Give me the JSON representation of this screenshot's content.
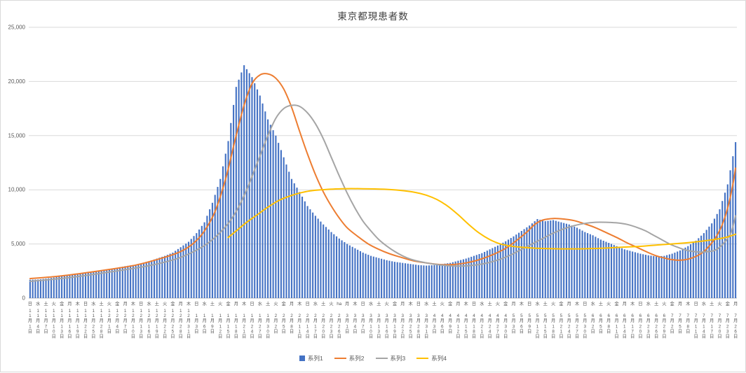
{
  "chart_data": {
    "type": "combo(bar+line)",
    "title": "東京都現患者数",
    "x_axis": "日付(毎日の棒、目盛ラベルは3日毎、11月1日〜7月26日)",
    "ylabel": "",
    "ylim": [
      0,
      25000
    ],
    "grid": "horizontal every 5000",
    "legend_position": "bottom",
    "n_days": 268,
    "y_ticks": [
      [
        0,
        "0"
      ],
      [
        5000,
        "5,000"
      ],
      [
        10000,
        "10,000"
      ],
      [
        15000,
        "15,000"
      ],
      [
        20000,
        "20,000"
      ],
      [
        25000,
        "25,000"
      ]
    ],
    "x_labels": {
      "weekday": [
        "日",
        "水",
        "土",
        "火",
        "金",
        "月",
        "木",
        "日",
        "水",
        "土",
        "火",
        "金",
        "月",
        "木",
        "日",
        "水",
        "土",
        "火",
        "金",
        "月",
        "木",
        "日",
        "水",
        "土",
        "火",
        "金",
        "月",
        "木",
        "日",
        "水",
        "土",
        "火",
        "金",
        "月",
        "木",
        "日",
        "水",
        "土",
        "火",
        "ha",
        "月",
        "木",
        "日",
        "水",
        "土",
        "火",
        "金",
        "月",
        "木",
        "日",
        "水",
        "土",
        "火",
        "金",
        "月",
        "木",
        "日",
        "水",
        "土",
        "火",
        "金",
        "月",
        "木",
        "日",
        "水",
        "土",
        "火",
        "金",
        "月",
        "木",
        "日",
        "水",
        "土",
        "火",
        "金",
        "月",
        "木",
        "日",
        "水",
        "土",
        "火",
        "金",
        "月",
        "木",
        "日",
        "水",
        "土",
        "火",
        "金",
        "月"
      ],
      "month": [
        "11月",
        "11月",
        "11月",
        "11月",
        "11月",
        "11月",
        "11月",
        "11月",
        "11月",
        "11月",
        "12月",
        "12月",
        "12月",
        "12月",
        "12月",
        "12月",
        "12月",
        "12月",
        "12月",
        "12月",
        "12月",
        "1月",
        "1月",
        "1月",
        "1月",
        "1月",
        "1月",
        "1月",
        "1月",
        "1月",
        "1月",
        "2月",
        "2月",
        "2月",
        "2月",
        "2月",
        "2月",
        "2月",
        "2月",
        "2月",
        "3月",
        "3月",
        "3月",
        "3月",
        "3月",
        "3月",
        "3月",
        "3月",
        "3月",
        "3月",
        "3月",
        "4月",
        "4月",
        "4月",
        "4月",
        "4月",
        "4月",
        "4月",
        "4月",
        "4月",
        "4月",
        "5月",
        "5月",
        "5月",
        "5月",
        "5月",
        "5月",
        "5月",
        "5月",
        "5月",
        "5月",
        "6月",
        "6月",
        "6月",
        "6月",
        "6月",
        "6月",
        "6月",
        "6月",
        "6月",
        "6月",
        "7月",
        "7月",
        "7月",
        "7月",
        "7月",
        "7月",
        "7月",
        "7月",
        "7月"
      ],
      "day": [
        "1日",
        "4日",
        "7日",
        "10日",
        "13日",
        "16日",
        "19日",
        "22日",
        "25日",
        "28日",
        "1日",
        "4日",
        "7日",
        "10日",
        "13日",
        "16日",
        "19日",
        "22日",
        "25日",
        "28日",
        "31日",
        "3日",
        "6日",
        "9日",
        "12日",
        "15日",
        "18日",
        "21日",
        "24日",
        "27日",
        "30日",
        "2日",
        "5日",
        "8日",
        "11日",
        "14日",
        "17日",
        "20日",
        "23日",
        "26日",
        "1日",
        "4日",
        "7日",
        "10日",
        "13日",
        "16日",
        "19日",
        "22日",
        "25日",
        "28日",
        "31日",
        "3日",
        "6日",
        "9日",
        "12日",
        "15日",
        "18日",
        "21日",
        "24日",
        "27日",
        "30日",
        "3日",
        "6日",
        "9日",
        "12日",
        "15日",
        "18日",
        "21日",
        "24日",
        "27日",
        "30日",
        "2日",
        "5日",
        "8日",
        "11日",
        "14日",
        "17日",
        "20日",
        "23日",
        "26日",
        "29日",
        "2日",
        "5日",
        "8日",
        "11日",
        "14日",
        "17日",
        "20日",
        "23日",
        "26日"
      ]
    },
    "bar_series": {
      "name": "系列1",
      "color": "#4472C4",
      "note": "daily bars; values estimated at each labeled date (every 3 days)",
      "values_every_3_days": [
        1700,
        1720,
        1800,
        1900,
        2050,
        2150,
        2250,
        2300,
        2450,
        2550,
        2700,
        2800,
        2950,
        3050,
        3200,
        3400,
        3650,
        3900,
        4200,
        4700,
        5200,
        6000,
        7000,
        8800,
        11000,
        14500,
        19500,
        21500,
        20400,
        18700,
        16500,
        15000,
        13000,
        11000,
        9800,
        8500,
        7600,
        6800,
        6100,
        5500,
        5000,
        4600,
        4200,
        3900,
        3700,
        3500,
        3350,
        3250,
        3150,
        3050,
        3000,
        3050,
        3150,
        3250,
        3450,
        3650,
        3900,
        4150,
        4500,
        4850,
        5250,
        5700,
        6200,
        6700,
        7300,
        7100,
        7200,
        7000,
        6800,
        6500,
        6100,
        5800,
        5400,
        5100,
        4800,
        4500,
        4300,
        4100,
        3950,
        3850,
        3900,
        4100,
        4400,
        4800,
        5300,
        6000,
        6900,
        8200,
        10500,
        14400
      ]
    },
    "line_series": [
      {
        "name": "系列2",
        "color": "#ED7D31",
        "points_day_value": [
          [
            0,
            1800
          ],
          [
            10,
            2000
          ],
          [
            20,
            2300
          ],
          [
            30,
            2650
          ],
          [
            40,
            3050
          ],
          [
            50,
            3700
          ],
          [
            57,
            4300
          ],
          [
            62,
            5100
          ],
          [
            66,
            6200
          ],
          [
            70,
            8000
          ],
          [
            74,
            11000
          ],
          [
            78,
            15000
          ],
          [
            81,
            17800
          ],
          [
            84,
            19800
          ],
          [
            87,
            20600
          ],
          [
            90,
            20700
          ],
          [
            93,
            20300
          ],
          [
            96,
            19300
          ],
          [
            99,
            17600
          ],
          [
            102,
            15400
          ],
          [
            105,
            13300
          ],
          [
            108,
            11400
          ],
          [
            111,
            9800
          ],
          [
            114,
            8500
          ],
          [
            117,
            7400
          ],
          [
            120,
            6500
          ],
          [
            124,
            5700
          ],
          [
            128,
            5000
          ],
          [
            132,
            4500
          ],
          [
            136,
            4100
          ],
          [
            140,
            3800
          ],
          [
            145,
            3450
          ],
          [
            150,
            3250
          ],
          [
            155,
            3100
          ],
          [
            160,
            3100
          ],
          [
            165,
            3250
          ],
          [
            170,
            3550
          ],
          [
            175,
            4000
          ],
          [
            180,
            4600
          ],
          [
            184,
            5300
          ],
          [
            188,
            6100
          ],
          [
            191,
            6800
          ],
          [
            194,
            7200
          ],
          [
            198,
            7350
          ],
          [
            202,
            7300
          ],
          [
            206,
            7150
          ],
          [
            210,
            6850
          ],
          [
            214,
            6500
          ],
          [
            218,
            6050
          ],
          [
            222,
            5600
          ],
          [
            226,
            5100
          ],
          [
            230,
            4650
          ],
          [
            234,
            4200
          ],
          [
            237,
            3900
          ],
          [
            240,
            3700
          ],
          [
            243,
            3550
          ],
          [
            246,
            3500
          ],
          [
            249,
            3600
          ],
          [
            252,
            3850
          ],
          [
            255,
            4300
          ],
          [
            258,
            5100
          ],
          [
            260,
            5800
          ],
          [
            262,
            6800
          ],
          [
            264,
            8300
          ],
          [
            266,
            10500
          ],
          [
            267,
            12000
          ]
        ]
      },
      {
        "name": "系列3",
        "color": "#A5A5A5",
        "points_day_value": [
          [
            0,
            1550
          ],
          [
            15,
            1900
          ],
          [
            30,
            2400
          ],
          [
            45,
            3000
          ],
          [
            55,
            3600
          ],
          [
            62,
            4300
          ],
          [
            68,
            5200
          ],
          [
            74,
            6600
          ],
          [
            78,
            8000
          ],
          [
            82,
            10000
          ],
          [
            86,
            12500
          ],
          [
            90,
            15000
          ],
          [
            93,
            16600
          ],
          [
            96,
            17500
          ],
          [
            99,
            17800
          ],
          [
            102,
            17700
          ],
          [
            105,
            17100
          ],
          [
            108,
            16100
          ],
          [
            111,
            14700
          ],
          [
            114,
            13000
          ],
          [
            117,
            11300
          ],
          [
            120,
            9700
          ],
          [
            123,
            8300
          ],
          [
            126,
            7100
          ],
          [
            129,
            6200
          ],
          [
            132,
            5400
          ],
          [
            135,
            4800
          ],
          [
            138,
            4300
          ],
          [
            141,
            3900
          ],
          [
            144,
            3600
          ],
          [
            147,
            3400
          ],
          [
            150,
            3250
          ],
          [
            154,
            3100
          ],
          [
            158,
            3000
          ],
          [
            162,
            2950
          ],
          [
            166,
            3000
          ],
          [
            170,
            3100
          ],
          [
            174,
            3300
          ],
          [
            178,
            3600
          ],
          [
            182,
            4000
          ],
          [
            186,
            4500
          ],
          [
            190,
            5000
          ],
          [
            194,
            5500
          ],
          [
            198,
            6000
          ],
          [
            202,
            6400
          ],
          [
            206,
            6700
          ],
          [
            210,
            6900
          ],
          [
            214,
            7000
          ],
          [
            218,
            7000
          ],
          [
            222,
            6950
          ],
          [
            226,
            6800
          ],
          [
            230,
            6500
          ],
          [
            233,
            6200
          ],
          [
            236,
            5800
          ],
          [
            239,
            5400
          ],
          [
            242,
            5000
          ],
          [
            245,
            4700
          ],
          [
            248,
            4450
          ],
          [
            251,
            4300
          ],
          [
            254,
            4250
          ],
          [
            257,
            4300
          ],
          [
            259,
            4400
          ],
          [
            261,
            4700
          ],
          [
            263,
            5200
          ],
          [
            265,
            5900
          ],
          [
            266,
            6600
          ],
          [
            267,
            7600
          ]
        ]
      },
      {
        "name": "系列4",
        "color": "#FFC000",
        "points_day_value": [
          [
            75,
            5600
          ],
          [
            78,
            6200
          ],
          [
            82,
            7000
          ],
          [
            86,
            7700
          ],
          [
            90,
            8400
          ],
          [
            94,
            9000
          ],
          [
            98,
            9400
          ],
          [
            102,
            9700
          ],
          [
            106,
            9900
          ],
          [
            110,
            10000
          ],
          [
            118,
            10100
          ],
          [
            126,
            10100
          ],
          [
            134,
            10050
          ],
          [
            140,
            9950
          ],
          [
            146,
            9750
          ],
          [
            150,
            9500
          ],
          [
            154,
            9100
          ],
          [
            158,
            8500
          ],
          [
            162,
            7700
          ],
          [
            166,
            6800
          ],
          [
            170,
            6000
          ],
          [
            174,
            5400
          ],
          [
            178,
            5000
          ],
          [
            182,
            4800
          ],
          [
            186,
            4700
          ],
          [
            192,
            4600
          ],
          [
            200,
            4550
          ],
          [
            208,
            4550
          ],
          [
            216,
            4600
          ],
          [
            224,
            4700
          ],
          [
            232,
            4800
          ],
          [
            240,
            4950
          ],
          [
            248,
            5100
          ],
          [
            254,
            5250
          ],
          [
            260,
            5450
          ],
          [
            264,
            5650
          ],
          [
            267,
            5900
          ]
        ]
      }
    ]
  },
  "legend": {
    "items": [
      {
        "key": "series1",
        "label": "系列1",
        "marker": "square",
        "color": "#4472C4"
      },
      {
        "key": "series2",
        "label": "系列2",
        "marker": "line",
        "color": "#ED7D31"
      },
      {
        "key": "series3",
        "label": "系列3",
        "marker": "line",
        "color": "#A5A5A5"
      },
      {
        "key": "series4",
        "label": "系列4",
        "marker": "line",
        "color": "#FFC000"
      }
    ]
  },
  "style": {
    "grid_color": "#d9d9d9",
    "axis_color": "#bfbfbf",
    "text_color": "#595959",
    "background": "#ffffff"
  }
}
